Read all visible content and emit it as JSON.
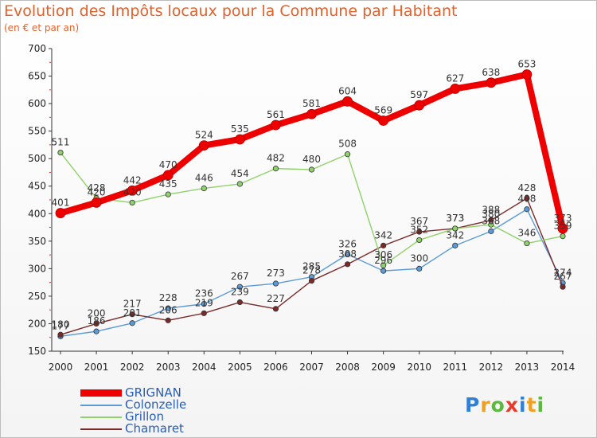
{
  "chart_data": {
    "type": "line",
    "title": "Evolution des Impôts locaux pour la Commune par Habitant",
    "subtitle": "(en € et par an)",
    "xlabel": "",
    "ylabel": "",
    "x": [
      "2000",
      "2001",
      "2002",
      "2003",
      "2004",
      "2005",
      "2006",
      "2007",
      "2008",
      "2009",
      "2010",
      "2011",
      "2012",
      "2013",
      "2014"
    ],
    "yticks": [
      "150",
      "200",
      "250",
      "300",
      "350",
      "400",
      "450",
      "500",
      "550",
      "600",
      "650",
      "700"
    ],
    "ylim": [
      150,
      700
    ],
    "grid": false,
    "legend": "bottom-left",
    "series": [
      {
        "name": "GRIGNAN",
        "color": "#ee0000",
        "values": [
          401,
          420,
          442,
          470,
          524,
          535,
          561,
          581,
          604,
          569,
          597,
          627,
          638,
          653,
          373
        ],
        "labels": [
          "401",
          "420",
          "442",
          "470",
          "524",
          "535",
          "561",
          "581",
          "604",
          "569",
          "597",
          "627",
          "638",
          "653",
          "373"
        ]
      },
      {
        "name": "Colonzelle",
        "color": "#5b9bd5",
        "values": [
          177,
          186,
          201,
          228,
          236,
          267,
          273,
          285,
          326,
          296,
          300,
          342,
          368,
          408,
          274
        ],
        "labels": [
          "177",
          "186",
          "201",
          "228",
          "236",
          "267",
          "273",
          "285",
          "326",
          "296",
          "300",
          "342",
          "368",
          "408",
          "274"
        ]
      },
      {
        "name": "Grillon",
        "color": "#8fd16a",
        "values": [
          511,
          428,
          420,
          435,
          446,
          454,
          482,
          480,
          508,
          306,
          352,
          373,
          380,
          346,
          359
        ],
        "labels": [
          "511",
          "428",
          "420",
          "435",
          "446",
          "454",
          "482",
          "480",
          "508",
          "306",
          "352",
          "373",
          "380",
          "346",
          "359"
        ]
      },
      {
        "name": "Chamaret",
        "color": "#7a2a2a",
        "values": [
          180,
          200,
          217,
          206,
          219,
          239,
          227,
          278,
          308,
          342,
          367,
          373,
          388,
          428,
          267
        ],
        "labels": [
          "180",
          "200",
          "217",
          "206",
          "219",
          "239",
          "227",
          "278",
          "308",
          "342",
          "367",
          "373",
          "388",
          "428",
          "267"
        ]
      }
    ]
  },
  "brand": {
    "text": "Proxiti",
    "letters": [
      {
        "ch": "P",
        "color": "#2f7fd8"
      },
      {
        "ch": "r",
        "color": "#f0a020"
      },
      {
        "ch": "o",
        "color": "#5cb840"
      },
      {
        "ch": "x",
        "color": "#e83a2a"
      },
      {
        "ch": "i",
        "color": "#2f7fd8"
      },
      {
        "ch": "t",
        "color": "#f0a020"
      },
      {
        "ch": "i",
        "color": "#5cb840"
      }
    ]
  }
}
